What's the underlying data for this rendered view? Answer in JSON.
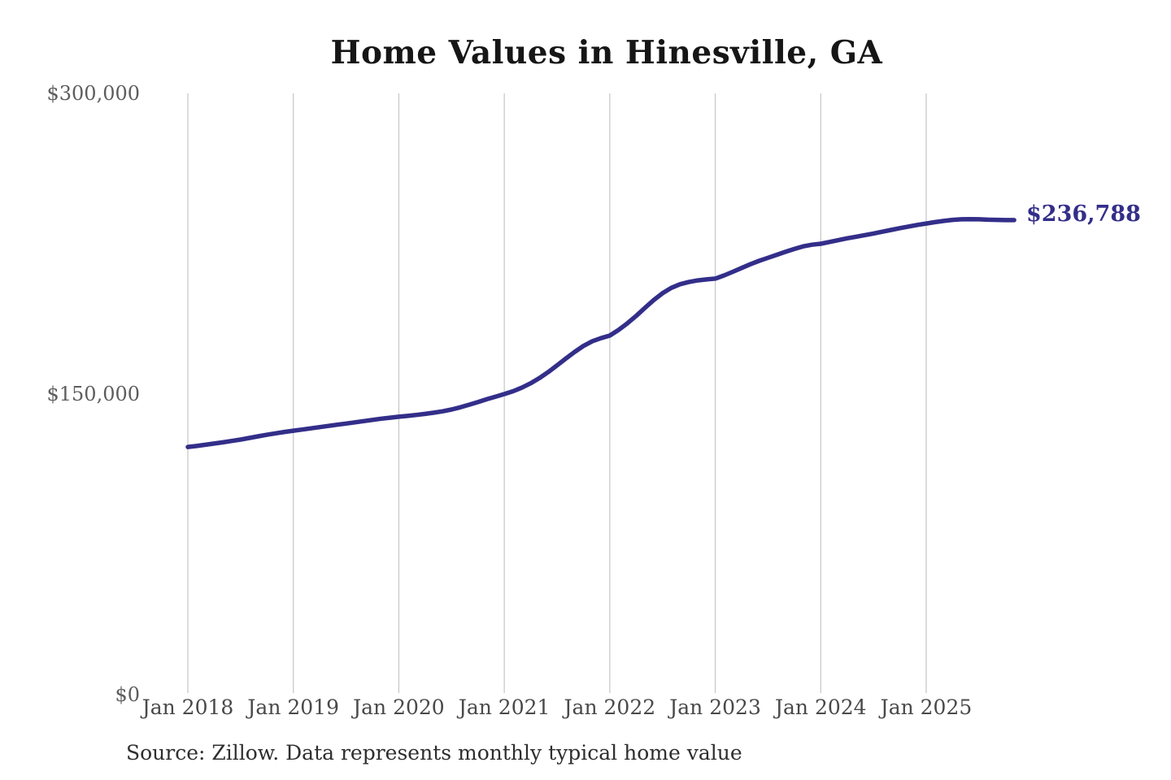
{
  "colors": {
    "accent_line": "#332e89",
    "gridline": "#c9c9c9",
    "title_text": "#161616",
    "axis_text": "#5d5d5d"
  },
  "chart_data": {
    "type": "line",
    "title": "Home Values in Hinesville, GA",
    "source": "Source: Zillow. Data represents monthly typical home value",
    "end_label": "$236,788",
    "xlabel": "",
    "ylabel": "",
    "ylim": [
      0,
      300000
    ],
    "grid": "vertical-only",
    "legend": "none",
    "y_ticks": [
      {
        "value": 0,
        "label": "$0"
      },
      {
        "value": 150000,
        "label": "$150,000"
      },
      {
        "value": 300000,
        "label": "$300,000"
      }
    ],
    "x_ticks": [
      {
        "month_index": 0,
        "label": "Jan 2018"
      },
      {
        "month_index": 12,
        "label": "Jan 2019"
      },
      {
        "month_index": 24,
        "label": "Jan 2020"
      },
      {
        "month_index": 36,
        "label": "Jan 2021"
      },
      {
        "month_index": 48,
        "label": "Jan 2022"
      },
      {
        "month_index": 60,
        "label": "Jan 2023"
      },
      {
        "month_index": 72,
        "label": "Jan 2024"
      },
      {
        "month_index": 84,
        "label": "Jan 2025"
      }
    ],
    "series": [
      {
        "name": "Monthly typical home value",
        "start": "Jan 2018",
        "interval": "monthly",
        "values": [
          123600,
          124100,
          124700,
          125300,
          125900,
          126600,
          127300,
          128100,
          128900,
          129700,
          130400,
          131100,
          131700,
          132300,
          132900,
          133500,
          134100,
          134700,
          135300,
          135900,
          136500,
          137100,
          137700,
          138200,
          138700,
          139100,
          139600,
          140100,
          140700,
          141400,
          142300,
          143400,
          144700,
          146000,
          147400,
          148700,
          150000,
          151400,
          153200,
          155400,
          158000,
          161000,
          164300,
          167700,
          171000,
          174000,
          176300,
          177900,
          179200,
          182000,
          185300,
          189000,
          193000,
          196900,
          200300,
          203000,
          204800,
          205900,
          206700,
          207200,
          207600,
          209200,
          211000,
          212900,
          214800,
          216500,
          218000,
          219500,
          221000,
          222400,
          223700,
          224500,
          225000,
          225900,
          226800,
          227700,
          228500,
          229300,
          230100,
          231000,
          231900,
          232800,
          233600,
          234400,
          235100,
          235800,
          236400,
          236900,
          237200,
          237300,
          237200,
          237000,
          236900,
          236800,
          236788
        ]
      }
    ]
  }
}
